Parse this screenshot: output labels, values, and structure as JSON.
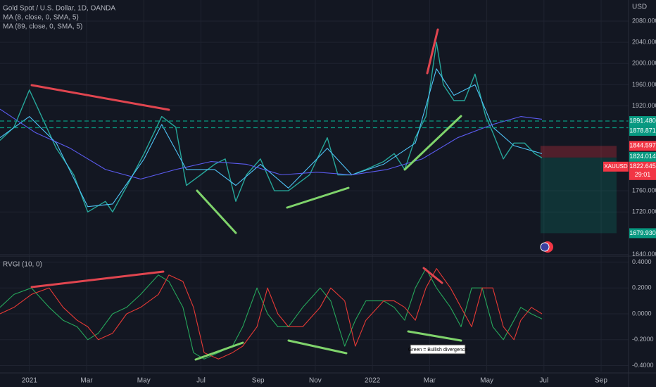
{
  "chart_data": [
    {
      "type": "line",
      "title": "Gold Spot / U.S. Dollar, 1D, OANDA",
      "axis_unit": "USD",
      "xlim": [
        -1.03,
        20.96
      ],
      "xticks": [
        {
          "value": 0,
          "label": "2021"
        },
        {
          "value": 2,
          "label": "Mar"
        },
        {
          "value": 4,
          "label": "May"
        },
        {
          "value": 6,
          "label": "Jul"
        },
        {
          "value": 8,
          "label": "Sep"
        },
        {
          "value": 10,
          "label": "Nov"
        },
        {
          "value": 12,
          "label": "2022"
        },
        {
          "value": 14,
          "label": "Mar"
        },
        {
          "value": 16,
          "label": "May"
        },
        {
          "value": 18,
          "label": "Jul"
        },
        {
          "value": 20,
          "label": "Sep"
        }
      ],
      "ylim": [
        1638,
        2119.8
      ],
      "yticks": [
        {
          "value": 2080,
          "label": "2080.000"
        },
        {
          "value": 2040,
          "label": "2040.000"
        },
        {
          "value": 2000,
          "label": "2000.000"
        },
        {
          "value": 1960,
          "label": "1960.000"
        },
        {
          "value": 1920,
          "label": "1920.000"
        },
        {
          "value": 1760,
          "label": "1760.000"
        },
        {
          "value": 1720,
          "label": "1720.000"
        },
        {
          "value": 1640,
          "label": "1640.000"
        }
      ],
      "grid": true,
      "price": {
        "color": "#26a69a",
        "x": [
          -1.03,
          -0.54,
          0,
          0.94,
          1.55,
          2.04,
          2.66,
          2.91,
          3.52,
          4.01,
          4.63,
          5.12,
          5.49,
          5.99,
          6.48,
          6.85,
          7.22,
          7.59,
          8.08,
          8.57,
          9.06,
          9.8,
          10.42,
          10.79,
          11.28,
          11.77,
          12.39,
          12.76,
          13.13,
          13.5,
          13.87,
          14.24,
          14.48,
          14.85,
          15.22,
          15.59,
          15.96,
          16.21,
          16.58,
          16.95,
          17.32,
          17.68,
          17.93
        ],
        "values": [
          1855,
          1880,
          1950,
          1840,
          1790,
          1720,
          1740,
          1720,
          1780,
          1830,
          1900,
          1880,
          1770,
          1790,
          1810,
          1820,
          1740,
          1790,
          1820,
          1760,
          1760,
          1790,
          1860,
          1790,
          1790,
          1800,
          1815,
          1830,
          1800,
          1860,
          1900,
          2040,
          1960,
          1930,
          1930,
          1980,
          1900,
          1870,
          1820,
          1850,
          1850,
          1830,
          1822
        ]
      },
      "series": [
        {
          "name": "MA (8, close, 0, SMA, 5)",
          "color": "#4fc3f7",
          "x": [
            -1.03,
            0,
            0.94,
            2.04,
            2.91,
            4.01,
            4.63,
            5.49,
            6.48,
            7.22,
            8.08,
            9.06,
            10.42,
            11.28,
            12.39,
            13.5,
            14.24,
            14.85,
            15.59,
            16.21,
            16.95,
            17.93
          ],
          "values": [
            1860,
            1900,
            1850,
            1730,
            1735,
            1820,
            1885,
            1800,
            1800,
            1770,
            1810,
            1765,
            1840,
            1790,
            1810,
            1850,
            1990,
            1940,
            1960,
            1880,
            1845,
            1830
          ]
        },
        {
          "name": "MA (89, close, 0, SMA, 5)",
          "color": "#5b5bf0",
          "x": [
            -1.03,
            0.2,
            1.43,
            2.66,
            3.89,
            5.12,
            6.35,
            7.59,
            8.82,
            10.05,
            11.28,
            12.51,
            13.74,
            14.98,
            16.21,
            17.19,
            17.93
          ],
          "values": [
            1914,
            1870,
            1840,
            1800,
            1782,
            1800,
            1815,
            1810,
            1790,
            1795,
            1790,
            1800,
            1820,
            1860,
            1885,
            1900,
            1895
          ]
        }
      ],
      "levels": [
        {
          "value": 1891.48,
          "label": "1891.480",
          "color": "#089981",
          "dashed": true
        },
        {
          "value": 1878.871,
          "label": "1878.871",
          "color": "#089981",
          "dashed": true
        },
        {
          "value": 1844.597,
          "label": "1844.597",
          "color": "#f23645"
        },
        {
          "value": 1824.014,
          "label": "1824.014",
          "color": "#089981"
        },
        {
          "value": 1822.645,
          "label": "1822.645",
          "color": "#f23645",
          "symbol": "XAUUSD",
          "countdown": "29:01"
        },
        {
          "value": 1679.93,
          "label": "1679.930",
          "color": "#089981"
        }
      ],
      "position": {
        "stop": 1844.597,
        "entry": 1822.645,
        "target": 1679.93,
        "x": [
          17.88,
          20.54
        ]
      }
    },
    {
      "type": "line",
      "title": "RVGI (10, 0)",
      "ylim": [
        -0.446,
        0.435
      ],
      "yticks": [
        {
          "value": 0.4,
          "label": "0.4000"
        },
        {
          "value": 0.2,
          "label": "0.2000"
        },
        {
          "value": 0,
          "label": "0.0000"
        },
        {
          "value": -0.2,
          "label": "-0.2000"
        },
        {
          "value": -0.4,
          "label": "-0.4000"
        }
      ],
      "grid": true,
      "annotation": "Green = Bullish divergence",
      "x": [
        -1.03,
        -0.54,
        0.07,
        0.69,
        1.18,
        1.67,
        2.04,
        2.41,
        2.91,
        3.4,
        3.89,
        4.51,
        4.88,
        5.37,
        5.74,
        6.11,
        6.61,
        7.1,
        7.46,
        7.96,
        8.33,
        8.69,
        9.06,
        9.56,
        10.17,
        10.54,
        11.03,
        11.4,
        11.77,
        12.39,
        12.76,
        13.13,
        13.5,
        13.87,
        14.24,
        14.73,
        15.1,
        15.47,
        15.84,
        16.21,
        16.58,
        16.95,
        17.19,
        17.56,
        17.93
      ],
      "series": [
        {
          "color": "#26a65b",
          "values": [
            0.05,
            0.15,
            0.2,
            0.05,
            -0.05,
            -0.1,
            -0.2,
            -0.15,
            0.0,
            0.05,
            0.15,
            0.3,
            0.25,
            0.05,
            -0.3,
            -0.35,
            -0.3,
            -0.25,
            -0.1,
            0.2,
            0.0,
            -0.1,
            -0.1,
            0.05,
            0.2,
            0.1,
            -0.25,
            -0.05,
            0.1,
            0.1,
            0.05,
            -0.05,
            0.2,
            0.35,
            0.2,
            0.05,
            -0.1,
            0.2,
            0.2,
            -0.1,
            -0.2,
            -0.05,
            0.05,
            0.0,
            -0.04
          ]
        },
        {
          "color": "#e53935",
          "values": [
            0.0,
            0.05,
            0.15,
            0.2,
            0.05,
            -0.05,
            -0.1,
            -0.2,
            -0.15,
            0.0,
            0.05,
            0.15,
            0.3,
            0.25,
            0.05,
            -0.3,
            -0.35,
            -0.3,
            -0.25,
            -0.1,
            0.2,
            0.0,
            -0.1,
            -0.1,
            0.05,
            0.2,
            0.1,
            -0.25,
            -0.05,
            0.1,
            0.1,
            0.05,
            -0.05,
            0.2,
            0.35,
            0.2,
            0.05,
            -0.1,
            0.2,
            0.2,
            -0.1,
            -0.2,
            -0.05,
            0.05,
            0.0
          ]
        }
      ]
    }
  ]
}
